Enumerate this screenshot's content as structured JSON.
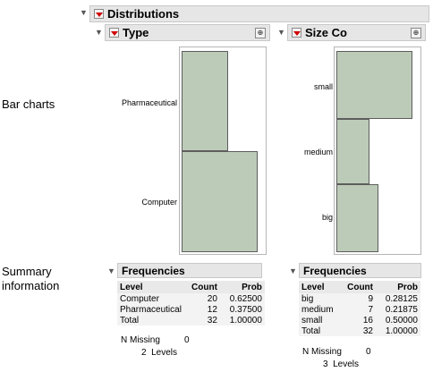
{
  "side_labels": {
    "bar_charts": "Bar charts",
    "summary_1": "Summary",
    "summary_2": "information"
  },
  "distributions": {
    "title": "Distributions"
  },
  "type_panel": {
    "title": "Type",
    "chart_data": {
      "type": "bar",
      "orientation": "horizontal",
      "categories": [
        "Pharmaceutical",
        "Computer"
      ],
      "values": [
        12,
        20
      ]
    }
  },
  "size_panel": {
    "title": "Size Co",
    "chart_data": {
      "type": "bar",
      "orientation": "horizontal",
      "categories": [
        "small",
        "medium",
        "big"
      ],
      "values": [
        16,
        7,
        9
      ]
    }
  },
  "freq_type": {
    "title": "Frequencies",
    "headers": [
      "Level",
      "Count",
      "Prob"
    ],
    "rows": [
      {
        "level": "Computer",
        "count": "20",
        "prob": "0.62500"
      },
      {
        "level": "Pharmaceutical",
        "count": "12",
        "prob": "0.37500"
      },
      {
        "level": "Total",
        "count": "32",
        "prob": "1.00000"
      }
    ],
    "n_missing_label": "N Missing",
    "n_missing": "0",
    "levels": "2  Levels"
  },
  "freq_size": {
    "title": "Frequencies",
    "headers": [
      "Level",
      "Count",
      "Prob"
    ],
    "rows": [
      {
        "level": "big",
        "count": "9",
        "prob": "0.28125"
      },
      {
        "level": "medium",
        "count": "7",
        "prob": "0.21875"
      },
      {
        "level": "small",
        "count": "16",
        "prob": "0.50000"
      },
      {
        "level": "Total",
        "count": "32",
        "prob": "1.00000"
      }
    ],
    "n_missing_label": "N Missing",
    "n_missing": "0",
    "levels": "3  Levels"
  },
  "colors": {
    "bar_fill": "#bccbb8",
    "bar_stroke": "#5d5d5d",
    "menu_triangle": "#d00000"
  }
}
